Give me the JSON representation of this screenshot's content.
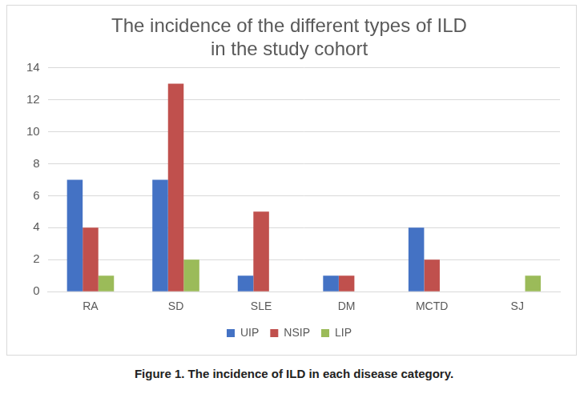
{
  "chart_data": {
    "type": "bar",
    "title": [
      "The incidence of the different types of ILD",
      "in the study cohort"
    ],
    "caption": "Figure 1. The incidence of ILD in each disease category.",
    "categories": [
      "RA",
      "SD",
      "SLE",
      "DM",
      "MCTD",
      "SJ"
    ],
    "series": [
      {
        "name": "UIP",
        "color": "#4472c4",
        "values": [
          7,
          7,
          1,
          1,
          4,
          0
        ]
      },
      {
        "name": "NSIP",
        "color": "#c0504d",
        "values": [
          4,
          13,
          5,
          1,
          2,
          0
        ]
      },
      {
        "name": "LIP",
        "color": "#9bbb59",
        "values": [
          1,
          2,
          0,
          0,
          0,
          1
        ]
      }
    ],
    "ylim": [
      0,
      14
    ],
    "yticks": [
      0,
      2,
      4,
      6,
      8,
      10,
      12,
      14
    ],
    "grid": true,
    "legend": "bottom"
  }
}
